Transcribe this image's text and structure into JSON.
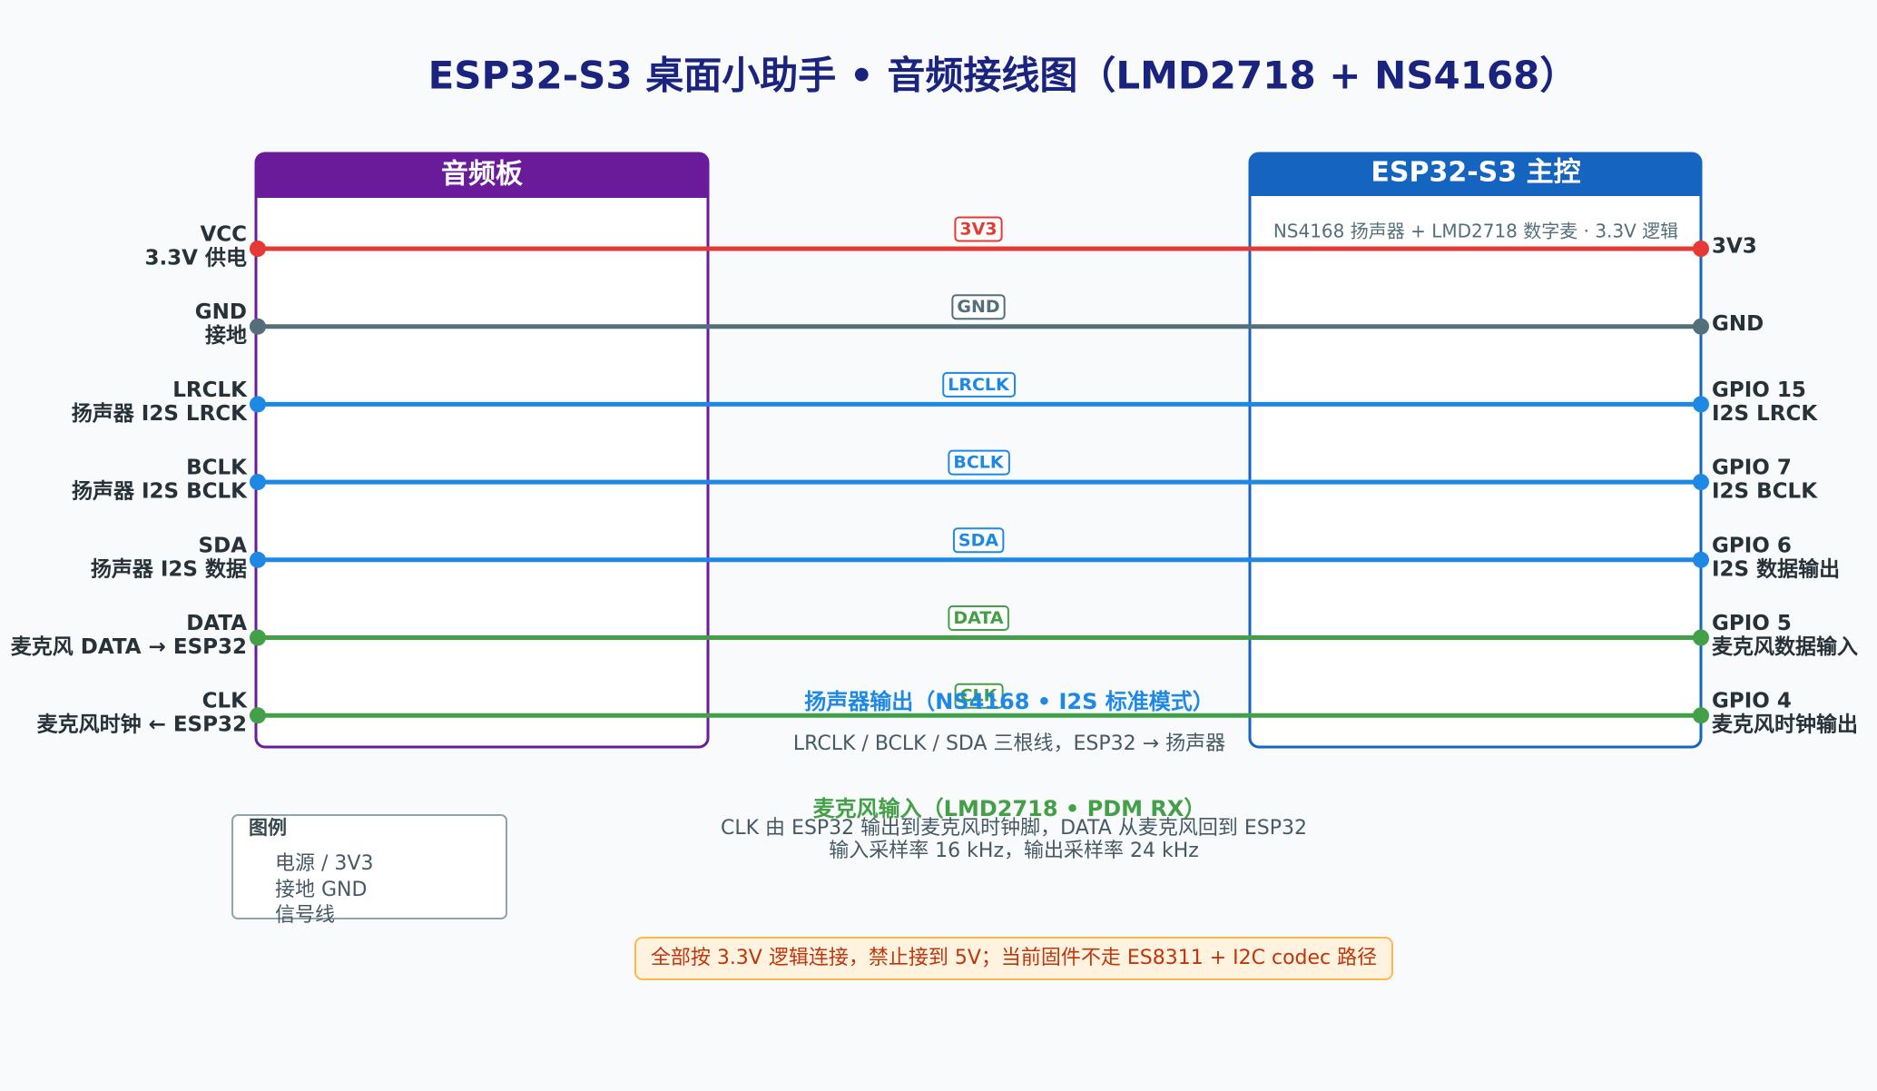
{
  "title": "ESP32-S3 桌面小助手 • 音频接线图（LMD2718 + NS4168）",
  "left_board": {
    "title": "音频板"
  },
  "right_board": {
    "title": "ESP32-S3 主控",
    "subtitle": "NS4168 扬声器 + LMD2718 数字麦 · 3.3V 逻辑"
  },
  "wires": [
    {
      "left_name": "VCC",
      "left_desc": "3.3V 供电",
      "label": "3V3",
      "right_name": "3V3",
      "right_desc": null
    },
    {
      "left_name": "GND",
      "left_desc": "接地",
      "label": "GND",
      "right_name": "GND",
      "right_desc": null
    },
    {
      "left_name": "LRCLK",
      "left_desc": "扬声器 I2S LRCK",
      "label": "LRCLK",
      "right_name": "GPIO 15",
      "right_desc": "I2S LRCK"
    },
    {
      "left_name": "BCLK",
      "left_desc": "扬声器 I2S BCLK",
      "label": "BCLK",
      "right_name": "GPIO 7",
      "right_desc": "I2S BCLK"
    },
    {
      "left_name": "SDA",
      "left_desc": "扬声器 I2S 数据",
      "label": "SDA",
      "right_name": "GPIO 6",
      "right_desc": "I2S 数据输出"
    },
    {
      "left_name": "DATA",
      "left_desc": "麦克风 DATA → ESP32",
      "label": "DATA",
      "right_name": "GPIO 5",
      "right_desc": "麦克风数据输入"
    },
    {
      "left_name": "CLK",
      "left_desc": "麦克风时钟 ← ESP32",
      "label": "CLK",
      "right_name": "GPIO 4",
      "right_desc": "麦克风时钟输出"
    }
  ],
  "speaker": {
    "title": "扬声器输出（NS4168 • I2S 标准模式）",
    "desc": "LRCLK / BCLK / SDA 三根线，ESP32 → 扬声器"
  },
  "mic": {
    "title": "麦克风输入（LMD2718 • PDM RX）",
    "desc": [
      "CLK 由 ESP32 输出到麦克风时钟脚，DATA 从麦克风回到 ESP32",
      "输入采样率 16 kHz，输出采样率 24 kHz"
    ]
  },
  "legend": {
    "title": "图例",
    "items": [
      "电源 / 3V3",
      "接地 GND",
      "信号线"
    ]
  },
  "warning": "全部按 3.3V 逻辑连接，禁止接到 5V；当前固件不走 ES8311 + I2C codec 路径"
}
